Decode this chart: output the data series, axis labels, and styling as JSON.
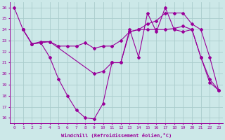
{
  "xlabel": "Windchill (Refroidissement éolien,°C)",
  "bg_color": "#cce8e8",
  "line_color": "#990099",
  "grid_color": "#aacccc",
  "xlim": [
    -0.5,
    23.5
  ],
  "ylim": [
    15.5,
    26.5
  ],
  "yticks": [
    16,
    17,
    18,
    19,
    20,
    21,
    22,
    23,
    24,
    25,
    26
  ],
  "xticks": [
    0,
    1,
    2,
    3,
    4,
    5,
    6,
    7,
    8,
    9,
    10,
    11,
    12,
    13,
    14,
    15,
    16,
    17,
    18,
    19,
    20,
    21,
    22,
    23
  ],
  "series1_x": [
    0,
    1,
    2,
    3,
    4,
    5,
    6,
    7,
    8,
    9,
    10,
    11,
    12,
    13,
    14,
    15,
    16,
    17,
    18,
    19,
    20,
    21,
    22,
    23
  ],
  "series1_y": [
    26,
    24,
    22.7,
    22.8,
    21.5,
    19.5,
    18,
    16.7,
    16.0,
    15.9,
    17.3,
    21.0,
    21.0,
    24.0,
    21.5,
    25.5,
    23.8,
    26.0,
    24.0,
    23.8,
    24.0,
    21.5,
    19.2,
    18.5
  ],
  "series2_x": [
    1,
    2,
    3,
    4,
    9,
    10,
    11,
    12,
    13,
    14,
    15,
    16,
    17,
    18,
    19,
    20,
    21,
    22,
    23
  ],
  "series2_y": [
    24,
    22.7,
    22.8,
    22.9,
    20.0,
    20.2,
    21.0,
    21.0,
    23.8,
    24.0,
    24.0,
    24.0,
    24.0,
    24.1,
    24.3,
    24.0,
    21.5,
    19.5,
    18.5
  ],
  "series3_x": [
    1,
    2,
    3,
    4,
    5,
    6,
    7,
    8,
    9,
    10,
    11,
    12,
    13,
    14,
    15,
    16,
    17,
    18,
    19,
    20,
    21,
    22,
    23
  ],
  "series3_y": [
    24,
    22.7,
    22.9,
    22.9,
    22.5,
    22.5,
    22.5,
    22.8,
    22.3,
    22.5,
    22.5,
    23.0,
    23.8,
    24.0,
    24.5,
    24.8,
    25.5,
    25.5,
    25.5,
    24.5,
    24.0,
    21.5,
    18.5
  ]
}
